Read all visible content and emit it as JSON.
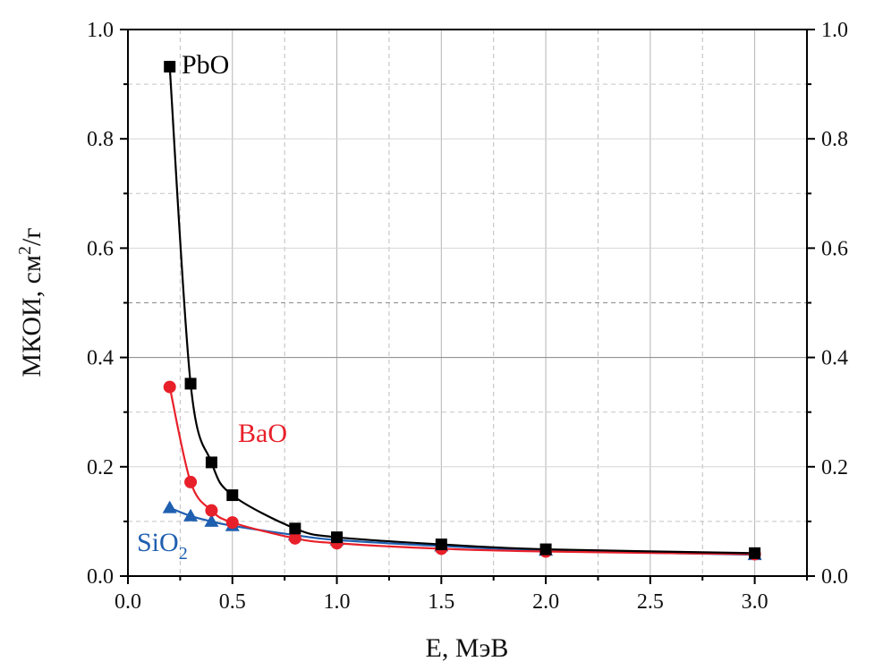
{
  "chart_data": {
    "type": "line",
    "title": "",
    "xlabel": "E, МэВ",
    "ylabel": "МКОИ, см²/г",
    "ylabel_parts": {
      "main": "МКОИ, см",
      "sup": "2",
      "tail": "/г"
    },
    "xlim": [
      0.0,
      3.25
    ],
    "ylim": [
      0.0,
      1.0
    ],
    "x_ticks": [
      "0.0",
      "0.5",
      "1.0",
      "1.5",
      "2.0",
      "2.5",
      "3.0"
    ],
    "y_ticks_left": [
      "0.0",
      "0.2",
      "0.4",
      "0.6",
      "0.8",
      "1.0"
    ],
    "y_ticks_right": [
      "0.0",
      "0.2",
      "0.4",
      "0.6",
      "0.8",
      "1.0"
    ],
    "grid": true,
    "series": [
      {
        "name": "PbO",
        "label": "PbO",
        "color": "#000000",
        "marker": "square",
        "x": [
          0.2,
          0.3,
          0.4,
          0.5,
          0.8,
          1.0,
          1.5,
          2.0,
          3.0
        ],
        "values": [
          0.932,
          0.352,
          0.208,
          0.148,
          0.087,
          0.071,
          0.058,
          0.049,
          0.042
        ]
      },
      {
        "name": "BaO",
        "label": "BaO",
        "color": "#e8202a",
        "marker": "circle",
        "x": [
          0.2,
          0.3,
          0.4,
          0.5,
          0.8,
          1.0,
          1.5,
          2.0,
          3.0
        ],
        "values": [
          0.346,
          0.172,
          0.12,
          0.098,
          0.069,
          0.06,
          0.05,
          0.045,
          0.04
        ]
      },
      {
        "name": "SiO2",
        "label": {
          "main": "SiO",
          "sub": "2"
        },
        "color": "#1f5fb0",
        "marker": "triangle",
        "x": [
          0.2,
          0.3,
          0.4,
          0.5,
          0.8,
          1.0,
          1.5,
          2.0,
          3.0
        ],
        "values": [
          0.125,
          0.11,
          0.1,
          0.092,
          0.075,
          0.066,
          0.055,
          0.047,
          0.039
        ]
      }
    ]
  }
}
